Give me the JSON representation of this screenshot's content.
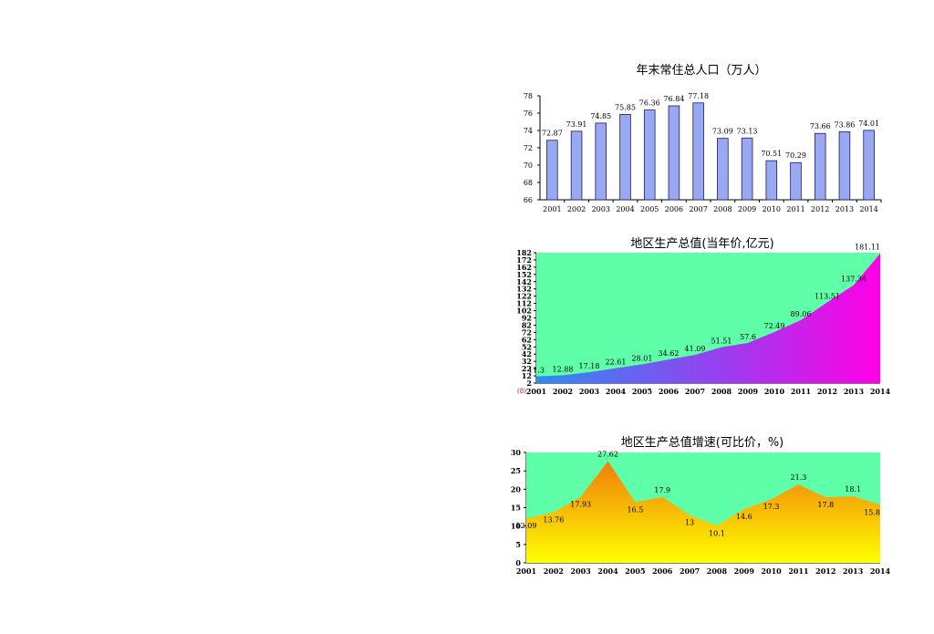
{
  "chart_data": [
    {
      "type": "bar",
      "title": "年末常住总人口（万人）",
      "categories": [
        "2001",
        "2002",
        "2003",
        "2004",
        "2005",
        "2006",
        "2007",
        "2008",
        "2009",
        "2010",
        "2011",
        "2012",
        "2013",
        "2014"
      ],
      "values": [
        72.87,
        73.91,
        74.85,
        75.85,
        76.36,
        76.84,
        77.18,
        73.09,
        73.13,
        70.51,
        70.29,
        73.66,
        73.86,
        74.01
      ],
      "value_labels": [
        "72.87",
        "73.91",
        "74.85",
        "75.85",
        "76.36",
        "76.84",
        "77.18",
        "73.09",
        "73.13",
        "70.51",
        "70.29",
        "73.66",
        "73.86",
        "74.01"
      ],
      "ylim": [
        66,
        78
      ],
      "yticks": [
        "66",
        "68",
        "70",
        "72",
        "74",
        "76",
        "78"
      ],
      "xlabel": "",
      "ylabel": "",
      "grid": false,
      "colors": {
        "bar": "#99a8f0",
        "bar_stroke": "#1a1a6e"
      }
    },
    {
      "type": "area",
      "title": "地区生产总值(当年价,亿元)",
      "categories": [
        "2001",
        "2002",
        "2003",
        "2004",
        "2005",
        "2006",
        "2007",
        "2008",
        "2009",
        "2010",
        "2011",
        "2012",
        "2013",
        "2014"
      ],
      "values": [
        11.3,
        12.88,
        17.18,
        22.61,
        28.01,
        34.62,
        41.09,
        51.51,
        57.6,
        72.49,
        89.06,
        113.51,
        137.34,
        181.11
      ],
      "value_labels": [
        "11.3",
        "12.88",
        "17.18",
        "22.61",
        "28.01",
        "34.62",
        "41.09",
        "51.51",
        "57.6",
        "72.49",
        "89.06",
        "113.51",
        "137.34",
        "181.11"
      ],
      "ylim": [
        2,
        182
      ],
      "yticks": [
        "2",
        "12",
        "22",
        "32",
        "42",
        "52",
        "62",
        "72",
        "82",
        "92",
        "102",
        "112",
        "122",
        "132",
        "142",
        "152",
        "162",
        "172",
        "182"
      ],
      "axis_note": "(8)",
      "xlabel": "",
      "ylabel": "",
      "grid": false,
      "colors": {
        "background": "#5effa8",
        "area_low": "#2f8cf2",
        "area_mid": "#9b3dee",
        "area_high": "#ff00e6"
      }
    },
    {
      "type": "area",
      "title": "地区生产总值增速(可比价，%)",
      "categories": [
        "2001",
        "2002",
        "2003",
        "2004",
        "2005",
        "2006",
        "2007",
        "2008",
        "2009",
        "2010",
        "2011",
        "2012",
        "2013",
        "2014"
      ],
      "values": [
        12.09,
        13.76,
        17.93,
        27.62,
        16.5,
        17.9,
        13,
        10.1,
        14.6,
        17.3,
        21.3,
        17.8,
        18.1,
        15.8
      ],
      "value_labels": [
        "12.09",
        "13.76",
        "17.93",
        "27.62",
        "16.5",
        "17.9",
        "13",
        "10.1",
        "14.6",
        "17.3",
        "21.3",
        "17.8",
        "18.1",
        "15.8"
      ],
      "ylim": [
        0,
        30
      ],
      "yticks": [
        "0",
        "5",
        "10",
        "15",
        "20",
        "25",
        "30"
      ],
      "xlabel": "",
      "ylabel": "",
      "grid": false,
      "colors": {
        "background": "#5effa8",
        "area_top": "#f07d0a",
        "area_bottom": "#ffff00"
      }
    }
  ]
}
